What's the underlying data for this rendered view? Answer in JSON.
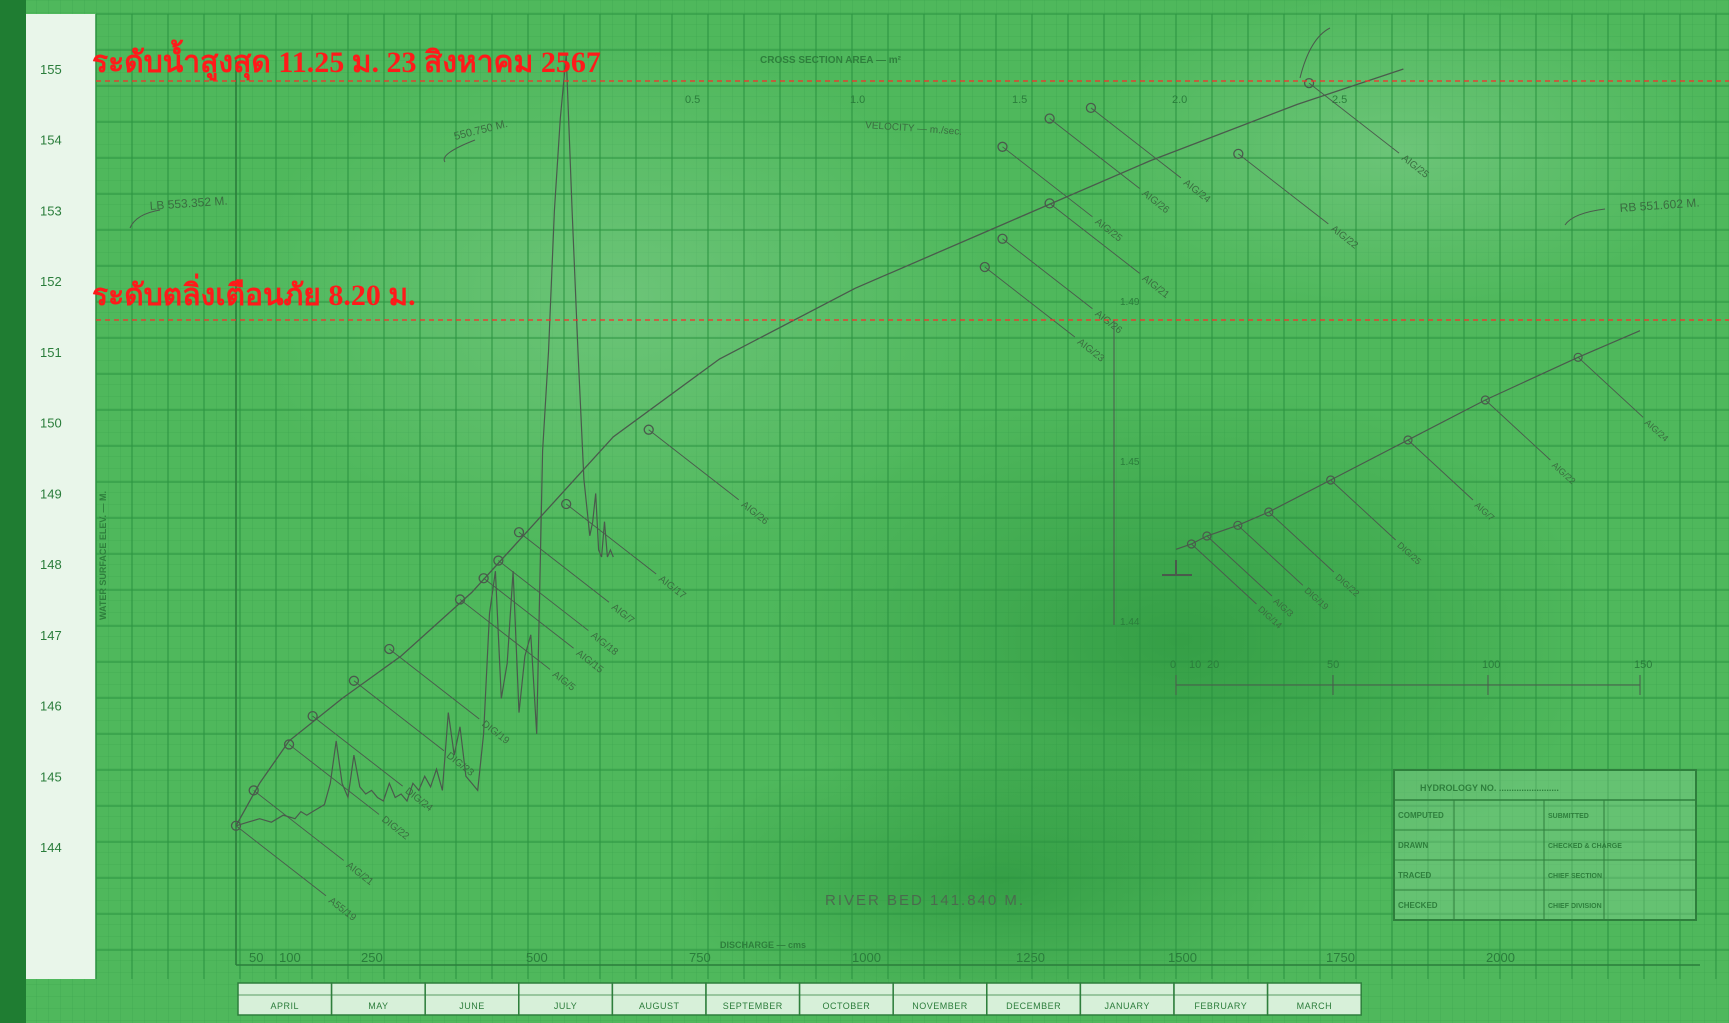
{
  "annotations": {
    "max_level": "ระดับน้ำสูงสุด 11.25 ม. 23 สิงหาคม 2567",
    "warning_level": "ระดับตลิ่งเตือนภัย 8.20 ม."
  },
  "colors": {
    "paper": "#4fb85c",
    "grid": "#2f9c44",
    "ink": "#4a5a4c",
    "annotation": "#ff1a1a"
  },
  "chart_data": [
    {
      "type": "line",
      "title": "",
      "y_ticks": [
        "155",
        "154",
        "153",
        "152",
        "151",
        "150",
        "149",
        "148",
        "147",
        "146",
        "145",
        "144"
      ],
      "x_ticks": [
        "50",
        "100",
        "250",
        "500",
        "750",
        "1000",
        "1250",
        "1500",
        "1750",
        "2000"
      ],
      "top_ticks": [
        "0.5",
        "1.0",
        "1.5",
        "2.0",
        "2.5"
      ],
      "ylim": [
        144,
        155
      ],
      "xlim": [
        0,
        2500
      ],
      "ylabel": "WATER SURFACE ELEV. — M.",
      "xlabel": "DISCHARGE — cms",
      "top_label": "CROSS SECTION AREA — m²",
      "velocity_label": "VELOCITY — m./sec.",
      "river_bed": "RIVER BED 141.840 M.",
      "rating_curve": {
        "x": [
          0,
          40,
          90,
          180,
          280,
          400,
          520,
          640,
          820,
          1050,
          1300,
          1550,
          1800,
          1980
        ],
        "y": [
          144.3,
          144.9,
          145.5,
          146.1,
          146.7,
          147.6,
          148.7,
          149.8,
          150.9,
          151.9,
          152.8,
          153.7,
          154.5,
          155.0
        ]
      },
      "measurements": [
        {
          "x": 0,
          "y": 144.3,
          "label": "A55/19"
        },
        {
          "x": 30,
          "y": 144.8,
          "label": "AIG/21"
        },
        {
          "x": 90,
          "y": 145.45,
          "label": "DIG/22"
        },
        {
          "x": 130,
          "y": 145.85,
          "label": "DIG/24"
        },
        {
          "x": 200,
          "y": 146.35,
          "label": "DIG/23"
        },
        {
          "x": 260,
          "y": 146.8,
          "label": "DIG/19"
        },
        {
          "x": 380,
          "y": 147.5,
          "label": "AIG/5"
        },
        {
          "x": 420,
          "y": 147.8,
          "label": "AIG/15"
        },
        {
          "x": 445,
          "y": 148.05,
          "label": "AIG/18"
        },
        {
          "x": 480,
          "y": 148.45,
          "label": "AIG/7"
        },
        {
          "x": 560,
          "y": 148.85,
          "label": "AIG/17"
        },
        {
          "x": 700,
          "y": 149.9,
          "label": "AIG/26"
        },
        {
          "x": 1270,
          "y": 152.2,
          "label": "AIG/23"
        },
        {
          "x": 1300,
          "y": 152.6,
          "label": "AIG/26"
        },
        {
          "x": 1380,
          "y": 153.1,
          "label": "AIG/21"
        },
        {
          "x": 1300,
          "y": 153.9,
          "label": "AIG/25"
        },
        {
          "x": 1380,
          "y": 154.3,
          "label": "AIG/26"
        },
        {
          "x": 1450,
          "y": 154.45,
          "label": "AIG/24"
        },
        {
          "x": 1700,
          "y": 153.8,
          "label": "AIG/22"
        },
        {
          "x": 1820,
          "y": 154.8,
          "label": "AIG/25"
        }
      ],
      "hydrograph": {
        "x": [
          0,
          20,
          40,
          60,
          80,
          100,
          110,
          120,
          130,
          140,
          150,
          160,
          170,
          180,
          190,
          200,
          210,
          220,
          230,
          240,
          250,
          260,
          270,
          280,
          290,
          300,
          310,
          320,
          330,
          340,
          350,
          360,
          370,
          380,
          390,
          400,
          410,
          420,
          430,
          440,
          450,
          460,
          470,
          480,
          490,
          500,
          510,
          520,
          530,
          540,
          550,
          560,
          570,
          580,
          590,
          600,
          605,
          610,
          615,
          620,
          625,
          630,
          635,
          640
        ],
        "y": [
          144.3,
          144.35,
          144.4,
          144.35,
          144.45,
          144.4,
          144.5,
          144.45,
          144.5,
          144.55,
          144.6,
          144.9,
          145.5,
          144.9,
          144.7,
          145.3,
          144.85,
          144.75,
          144.8,
          144.7,
          144.65,
          144.9,
          144.7,
          144.75,
          144.65,
          144.9,
          144.8,
          145.0,
          144.85,
          145.1,
          144.8,
          145.9,
          145.3,
          145.7,
          145.0,
          144.9,
          144.8,
          145.6,
          147.3,
          147.9,
          146.1,
          146.6,
          147.9,
          145.9,
          146.7,
          147.0,
          145.6,
          149.6,
          151.0,
          153.0,
          154.3,
          155.2,
          153.0,
          151.0,
          149.2,
          148.4,
          148.6,
          149.0,
          148.2,
          148.1,
          148.6,
          148.1,
          148.2,
          148.1
        ]
      },
      "annotations": [
        "LB 553.352 M.",
        "RB 551.602 M.",
        "550.750 M."
      ]
    },
    {
      "type": "line",
      "title": "",
      "x_ticks": [
        "0",
        "10",
        "20",
        "50",
        "100",
        "150"
      ],
      "y_ticks": [
        "1.49",
        "1.45",
        "1.44"
      ],
      "curve": {
        "x": [
          0,
          5,
          10,
          20,
          30,
          50,
          70,
          100,
          130,
          150
        ],
        "y": [
          0.2,
          0.3,
          0.45,
          0.65,
          0.9,
          1.5,
          2.1,
          3.0,
          3.8,
          4.3
        ]
      },
      "points": [
        {
          "label": "DIG/14",
          "x": 5
        },
        {
          "label": "AIG/3",
          "x": 10
        },
        {
          "label": "DIG/19",
          "x": 20
        },
        {
          "label": "DIG/22",
          "x": 30
        },
        {
          "label": "DIG/25",
          "x": 50
        },
        {
          "label": "AIG/7",
          "x": 75
        },
        {
          "label": "AIG/22",
          "x": 100
        },
        {
          "label": "AIG/24",
          "x": 130
        }
      ]
    }
  ],
  "months": [
    "APRIL",
    "MAY",
    "JUNE",
    "JULY",
    "AUGUST",
    "SEPTEMBER",
    "OCTOBER",
    "NOVEMBER",
    "DECEMBER",
    "JANUARY",
    "FEBRUARY",
    "MARCH"
  ],
  "title_block": {
    "header": "HYDROLOGY NO. ........................",
    "rows": [
      [
        "COMPUTED",
        "SUBMITTED"
      ],
      [
        "DRAWN",
        "CHECKED & CHARGE"
      ],
      [
        "TRACED",
        "CHIEF SECTION"
      ],
      [
        "CHECKED",
        "CHIEF DIVISION"
      ]
    ]
  }
}
